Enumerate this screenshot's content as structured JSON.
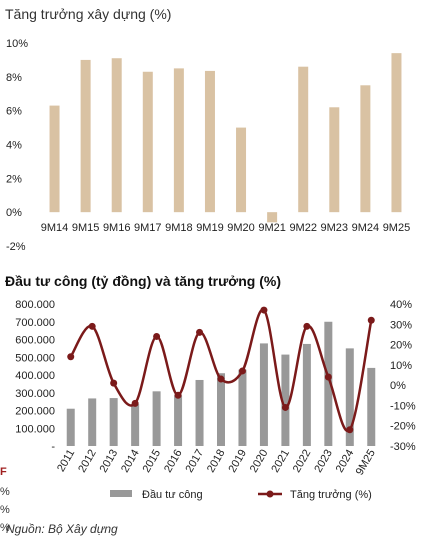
{
  "chart_data": [
    {
      "type": "bar",
      "title": "Tăng trưởng xây dựng (%)",
      "categories": [
        "9M14",
        "9M15",
        "9M16",
        "9M17",
        "9M18",
        "9M19",
        "9M20",
        "9M21",
        "9M22",
        "9M23",
        "9M24",
        "9M25"
      ],
      "values": [
        6.3,
        9.0,
        9.1,
        8.3,
        8.5,
        8.35,
        5.0,
        -0.6,
        8.6,
        6.2,
        7.5,
        9.4
      ],
      "ylim": [
        -2,
        10
      ],
      "yticks": [
        "-2%",
        "0%",
        "2%",
        "4%",
        "6%",
        "8%",
        "10%"
      ],
      "bar_color": "#d9c2a3",
      "grid": false
    },
    {
      "type": "bar+line",
      "title": "Đầu tư công (tỷ đồng) và tăng trưởng (%)",
      "categories": [
        "2011",
        "2012",
        "2013",
        "2014",
        "2015",
        "2016",
        "2017",
        "2018",
        "2019",
        "2020",
        "2021",
        "2022",
        "2023",
        "2024",
        "9M25"
      ],
      "series": [
        {
          "name": "Đầu tư công",
          "type": "bar",
          "axis": "left",
          "color": "#999999",
          "values": [
            210000,
            268000,
            270000,
            235000,
            308000,
            285000,
            372000,
            410000,
            430000,
            578000,
            515000,
            575000,
            700000,
            550000,
            440000
          ]
        },
        {
          "name": "Tăng trưởng (%)",
          "type": "line",
          "axis": "right",
          "color": "#7b1a1a",
          "values": [
            14,
            29,
            1,
            -9,
            24,
            -5,
            26,
            3,
            7,
            37,
            -11,
            29,
            4,
            -22,
            32
          ]
        }
      ],
      "left_ylim": [
        0,
        800000
      ],
      "left_yticks": [
        "-",
        "100.000",
        "200.000",
        "300.000",
        "400.000",
        "500.000",
        "600.000",
        "700.000",
        "800.000"
      ],
      "right_ylim": [
        -30,
        40
      ],
      "right_yticks": [
        "-30%",
        "-20%",
        "-10%",
        "0%",
        "10%",
        "20%",
        "30%",
        "40%"
      ],
      "legend": "bottom"
    }
  ],
  "source": "Nguồn: Bộ Xây dựng",
  "edge_fragments": [
    "F",
    "%",
    "%",
    "%"
  ]
}
